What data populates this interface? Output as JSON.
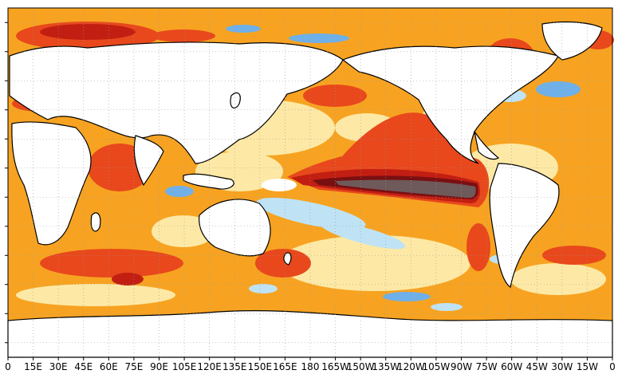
{
  "map": {
    "title": "",
    "x_tick_labels": [
      "0",
      "15E",
      "30E",
      "45E",
      "60E",
      "75E",
      "90E",
      "105E",
      "120E",
      "135E",
      "150E",
      "165E",
      "180",
      "165W",
      "150W",
      "135W",
      "120W",
      "105W",
      "90W",
      "75W",
      "60W",
      "45W",
      "30W",
      "15W",
      "0"
    ],
    "y_tick_labels": [
      "",
      "",
      "",
      "",
      "",
      "",
      "",
      "",
      "",
      "",
      "",
      ""
    ],
    "colors": {
      "land": "#ffffff",
      "coastline": "#000000",
      "grid": "#9a9a9a",
      "anomaly_pale_yellow": "#fde9a5",
      "anomaly_orange": "#f7a321",
      "anomaly_red_orange": "#e8481c",
      "anomaly_red": "#c21f12",
      "anomaly_dark_red": "#7a0f12",
      "anomaly_darkest": "#6e5a5a",
      "anomaly_pale_blue": "#bfe3f5",
      "anomaly_blue": "#6fb0e8"
    },
    "legend": "none",
    "grid": true
  }
}
